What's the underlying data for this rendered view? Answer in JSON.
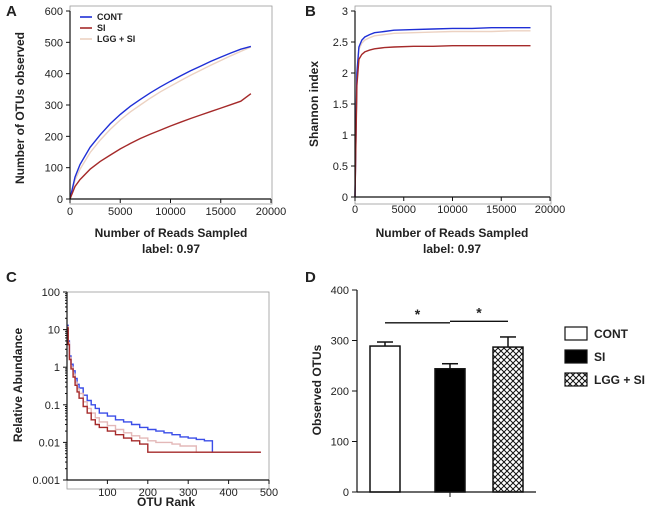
{
  "chart_data": [
    {
      "panel": "A",
      "type": "line",
      "xlabel": "Number of Reads Sampled",
      "ylabel": "Number of OTUs observed",
      "subtitle": "label: 0.97",
      "xlim": [
        0,
        20000
      ],
      "ylim": [
        0,
        600
      ],
      "xticks": [
        "0",
        "5000",
        "10000",
        "15000",
        "20000"
      ],
      "yticks": [
        "0",
        "100",
        "200",
        "300",
        "400",
        "500",
        "600"
      ],
      "legend_position": "top-left",
      "series": [
        {
          "name": "CONT",
          "color": "#1f2fd6",
          "x": [
            0,
            500,
            1000,
            2000,
            3000,
            4000,
            5000,
            6000,
            7000,
            8000,
            9000,
            10000,
            11000,
            12000,
            13000,
            14000,
            15000,
            16000,
            17000,
            18000
          ],
          "y": [
            0,
            70,
            110,
            165,
            205,
            240,
            270,
            296,
            318,
            339,
            358,
            376,
            393,
            409,
            424,
            439,
            453,
            466,
            478,
            487
          ]
        },
        {
          "name": "SI",
          "color": "#a52a2a",
          "x": [
            0,
            500,
            1000,
            2000,
            3000,
            4000,
            5000,
            6000,
            7000,
            8000,
            9000,
            10000,
            11000,
            12000,
            13000,
            14000,
            15000,
            16000,
            17000,
            18000
          ],
          "y": [
            0,
            40,
            62,
            95,
            120,
            140,
            160,
            177,
            193,
            207,
            220,
            233,
            245,
            257,
            268,
            279,
            290,
            301,
            312,
            336
          ]
        },
        {
          "name": "LGG + SI",
          "color": "#ecd2c2",
          "x": [
            0,
            500,
            1000,
            2000,
            3000,
            4000,
            5000,
            6000,
            7000,
            8000,
            9000,
            10000,
            11000,
            12000,
            13000,
            14000,
            15000,
            16000,
            17000,
            18000
          ],
          "y": [
            0,
            60,
            95,
            148,
            188,
            222,
            252,
            278,
            300,
            322,
            342,
            360,
            378,
            395,
            411,
            427,
            442,
            457,
            471,
            485
          ]
        }
      ]
    },
    {
      "panel": "B",
      "type": "line",
      "xlabel": "Number of Reads Sampled",
      "ylabel": "Shannon index",
      "subtitle": "label: 0.97",
      "xlim": [
        0,
        20000
      ],
      "ylim": [
        0,
        3
      ],
      "xticks": [
        "0",
        "5000",
        "10000",
        "15000",
        "20000"
      ],
      "yticks": [
        "0",
        "0.5",
        "1",
        "1.5",
        "2",
        "2.5",
        "3"
      ],
      "series": [
        {
          "name": "CONT",
          "color": "#1f2fd6",
          "x": [
            0,
            200,
            400,
            700,
            1000,
            1500,
            2000,
            3000,
            4000,
            6000,
            8000,
            10000,
            12000,
            14000,
            16000,
            18000
          ],
          "y": [
            0,
            2.0,
            2.42,
            2.53,
            2.58,
            2.62,
            2.65,
            2.67,
            2.69,
            2.7,
            2.71,
            2.72,
            2.72,
            2.73,
            2.73,
            2.73
          ]
        },
        {
          "name": "SI",
          "color": "#a52a2a",
          "x": [
            0,
            200,
            400,
            700,
            1000,
            1500,
            2000,
            3000,
            4000,
            6000,
            8000,
            10000,
            12000,
            14000,
            16000,
            18000
          ],
          "y": [
            0,
            1.8,
            2.22,
            2.3,
            2.34,
            2.37,
            2.39,
            2.41,
            2.42,
            2.43,
            2.43,
            2.44,
            2.44,
            2.44,
            2.44,
            2.44
          ]
        },
        {
          "name": "LGG + SI",
          "color": "#ecd2c2",
          "x": [
            0,
            200,
            400,
            700,
            1000,
            1500,
            2000,
            3000,
            4000,
            6000,
            8000,
            10000,
            12000,
            14000,
            16000,
            18000
          ],
          "y": [
            0,
            1.95,
            2.38,
            2.48,
            2.53,
            2.57,
            2.6,
            2.62,
            2.64,
            2.65,
            2.66,
            2.67,
            2.67,
            2.67,
            2.68,
            2.68
          ]
        }
      ]
    },
    {
      "panel": "C",
      "type": "line",
      "xlabel": "OTU Rank",
      "ylabel": "Relative Abundance",
      "yscale": "log",
      "xlim": [
        0,
        500
      ],
      "ylim": [
        0.001,
        100
      ],
      "xticks": [
        "100",
        "200",
        "300",
        "400",
        "500"
      ],
      "xtick_values": [
        100,
        200,
        300,
        400,
        500
      ],
      "yticks": [
        "0.001",
        "0.01",
        "0.1",
        "1",
        "10",
        "100"
      ],
      "ytick_values": [
        0.001,
        0.01,
        0.1,
        1,
        10,
        100
      ],
      "series": [
        {
          "name": "CONT",
          "color": "#3a4de8",
          "x": [
            1,
            3,
            6,
            10,
            15,
            20,
            25,
            30,
            40,
            50,
            60,
            70,
            80,
            100,
            120,
            140,
            160,
            180,
            200,
            220,
            240,
            260,
            280,
            300,
            320,
            340,
            355,
            360,
            480
          ],
          "y": [
            13,
            5,
            2,
            1.2,
            0.8,
            0.5,
            0.35,
            0.28,
            0.18,
            0.13,
            0.1,
            0.08,
            0.06,
            0.05,
            0.04,
            0.035,
            0.03,
            0.025,
            0.022,
            0.02,
            0.018,
            0.016,
            0.014,
            0.013,
            0.012,
            0.011,
            0.011,
            0.0055,
            0.0055
          ]
        },
        {
          "name": "SI",
          "color": "#a52a2a",
          "x": [
            1,
            3,
            6,
            10,
            15,
            20,
            25,
            30,
            40,
            50,
            60,
            70,
            80,
            100,
            120,
            140,
            160,
            180,
            200,
            220,
            240,
            260,
            280,
            300,
            480
          ],
          "y": [
            11,
            4,
            1.6,
            0.9,
            0.55,
            0.33,
            0.22,
            0.15,
            0.09,
            0.06,
            0.04,
            0.03,
            0.025,
            0.02,
            0.016,
            0.013,
            0.011,
            0.009,
            0.0055,
            0.0055,
            0.0055,
            0.0055,
            0.0055,
            0.0055,
            0.0055
          ]
        },
        {
          "name": "LGG + SI",
          "color": "#e3b8b8",
          "x": [
            1,
            3,
            6,
            10,
            15,
            20,
            25,
            30,
            40,
            50,
            60,
            70,
            80,
            100,
            120,
            140,
            160,
            180,
            200,
            220,
            240,
            260,
            280,
            300,
            320,
            480
          ],
          "y": [
            12,
            4.5,
            1.8,
            1.0,
            0.65,
            0.4,
            0.27,
            0.2,
            0.12,
            0.08,
            0.06,
            0.045,
            0.035,
            0.028,
            0.022,
            0.018,
            0.015,
            0.013,
            0.011,
            0.01,
            0.01,
            0.009,
            0.008,
            0.008,
            0.0055,
            0.0055
          ]
        }
      ]
    },
    {
      "panel": "D",
      "type": "bar",
      "ylabel": "Observed OTUs",
      "ylim": [
        0,
        400
      ],
      "yticks": [
        "0",
        "100",
        "200",
        "300",
        "400"
      ],
      "categories": [
        "CONT",
        "SI",
        "LGG + SI"
      ],
      "values": [
        289,
        244,
        287
      ],
      "errors": [
        8,
        10,
        20
      ],
      "fills": [
        "white",
        "black",
        "crosshatch"
      ],
      "significance": [
        {
          "from": "CONT",
          "to": "SI",
          "label": "*"
        },
        {
          "from": "SI",
          "to": "LGG + SI",
          "label": "*"
        }
      ],
      "legend_position": "right"
    }
  ]
}
